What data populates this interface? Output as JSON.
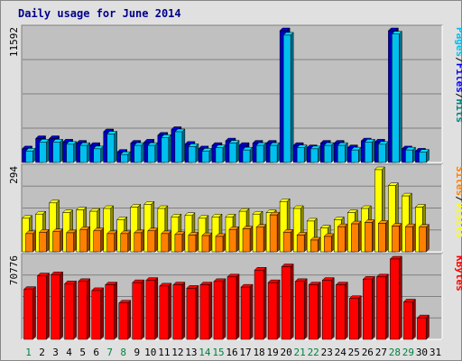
{
  "chart_data": {
    "type": "bar",
    "title": "Daily usage for June 2014",
    "days": [
      "1",
      "2",
      "3",
      "4",
      "5",
      "6",
      "7",
      "8",
      "9",
      "10",
      "11",
      "12",
      "13",
      "14",
      "15",
      "16",
      "17",
      "18",
      "19",
      "20",
      "21",
      "22",
      "23",
      "24",
      "25",
      "26",
      "27",
      "28",
      "29",
      "30",
      "31"
    ],
    "weekend_days": [
      "1",
      "7",
      "8",
      "14",
      "15",
      "21",
      "22",
      "28",
      "29"
    ],
    "panels": [
      {
        "id": "hits-files-pages",
        "ylabel_parts": [
          "Pages",
          "Files",
          "Hits"
        ],
        "ylabel_colors": [
          "#00c0f0",
          "#0000ff",
          "#008080"
        ],
        "ytick": "11592",
        "ymax": 11592,
        "series": [
          {
            "name": "Hits",
            "color": "#0000c0",
            "values": [
              1200,
              2100,
              2100,
              1800,
              1700,
              1500,
              2700,
              900,
              1700,
              1800,
              2400,
              2900,
              1600,
              1200,
              1500,
              1900,
              1500,
              1700,
              1700,
              11590,
              1500,
              1300,
              1700,
              1700,
              1300,
              1900,
              1800,
              11590,
              1200,
              1000,
              null
            ]
          },
          {
            "name": "Files",
            "color": "#00c0f0",
            "values": [
              1000,
              1800,
              1800,
              1600,
              1500,
              1200,
              2500,
              700,
              1500,
              1500,
              2200,
              2700,
              1400,
              1000,
              1300,
              1700,
              1100,
              1500,
              1500,
              11200,
              1300,
              1200,
              1500,
              1500,
              1100,
              1800,
              1600,
              11300,
              1100,
              900,
              null
            ]
          },
          {
            "name": "Pages",
            "color": "#00c0f0",
            "values": [
              null,
              null,
              null,
              null,
              null,
              null,
              null,
              null,
              null,
              null,
              null,
              null,
              null,
              null,
              null,
              null,
              null,
              null,
              null,
              null,
              null,
              null,
              null,
              null,
              null,
              null,
              null,
              null,
              null,
              null,
              null
            ]
          }
        ]
      },
      {
        "id": "visits-sites",
        "ylabel_parts": [
          "Sites",
          "Visits"
        ],
        "ylabel_colors": [
          "#ff8000",
          "#ffff00"
        ],
        "ytick": "294",
        "ymax": 294,
        "series": [
          {
            "name": "Visits",
            "color": "#ffff00",
            "values": [
              120,
              135,
              175,
              140,
              150,
              145,
              155,
              115,
              160,
              170,
              155,
              125,
              130,
              120,
              125,
              125,
              145,
              135,
              140,
              180,
              155,
              110,
              85,
              115,
              140,
              155,
              294,
              237,
              200,
              160,
              null
            ]
          },
          {
            "name": "Sites",
            "color": "#ff8000",
            "values": [
              65,
              70,
              72,
              68,
              80,
              75,
              65,
              65,
              68,
              75,
              65,
              62,
              60,
              58,
              55,
              80,
              82,
              88,
              132,
              70,
              60,
              42,
              55,
              90,
              100,
              105,
              102,
              92,
              90,
              88,
              null
            ]
          }
        ]
      },
      {
        "id": "kbytes",
        "ylabel_parts": [
          "KBytes"
        ],
        "ylabel_colors": [
          "#ff0000"
        ],
        "ytick": "70776",
        "ymax": 70776,
        "series": [
          {
            "name": "KBytes",
            "color": "#ff0000",
            "values": [
              44000,
              56000,
              57000,
              49000,
              51000,
              43000,
              48000,
              32000,
              50000,
              52000,
              47000,
              48000,
              45000,
              48000,
              51000,
              55000,
              46000,
              61000,
              50000,
              64000,
              51000,
              48000,
              52000,
              48000,
              36000,
              53000,
              55000,
              70776,
              33000,
              19000,
              null
            ]
          }
        ]
      }
    ]
  }
}
